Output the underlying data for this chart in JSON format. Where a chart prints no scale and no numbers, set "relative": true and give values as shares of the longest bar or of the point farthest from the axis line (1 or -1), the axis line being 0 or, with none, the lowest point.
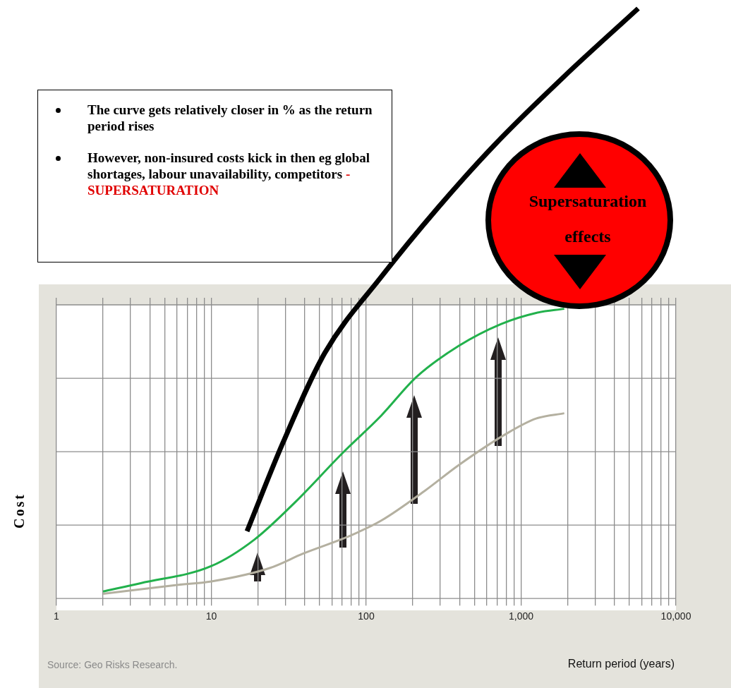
{
  "chart_data": {
    "type": "line",
    "relative": true,
    "log": "x",
    "grid": true,
    "legend": false,
    "marker": "none",
    "xlabel": "Return period (years)",
    "ylabel": "Cost",
    "xlim": [
      1,
      10000
    ],
    "xticks": [
      1,
      {
        "value": 2,
        "label": null
      },
      {
        "value": 3,
        "label": null
      },
      {
        "value": 4,
        "label": null
      },
      {
        "value": 5,
        "label": null
      },
      {
        "value": 6,
        "label": null
      },
      {
        "value": 7,
        "label": null
      },
      {
        "value": 8,
        "label": null
      },
      {
        "value": 9,
        "label": null
      },
      {
        "value": 10,
        "label": "10"
      },
      {
        "value": 20,
        "label": null
      },
      {
        "value": 30,
        "label": null
      },
      {
        "value": 40,
        "label": null
      },
      {
        "value": 50,
        "label": null
      },
      {
        "value": 60,
        "label": null
      },
      {
        "value": 70,
        "label": null
      },
      {
        "value": 80,
        "label": null
      },
      {
        "value": 90,
        "label": null
      },
      {
        "value": 100,
        "label": "100"
      },
      {
        "value": 200,
        "label": null
      },
      {
        "value": 300,
        "label": null
      },
      {
        "value": 400,
        "label": null
      },
      {
        "value": 500,
        "label": null
      },
      {
        "value": 600,
        "label": null
      },
      {
        "value": 700,
        "label": null
      },
      {
        "value": 800,
        "label": null
      },
      {
        "value": 900,
        "label": null
      },
      {
        "value": 1000,
        "label": "1,000"
      },
      {
        "value": 2000,
        "label": null
      },
      {
        "value": 3000,
        "label": null
      },
      {
        "value": 4000,
        "label": null
      },
      {
        "value": 5000,
        "label": null
      },
      {
        "value": 6000,
        "label": null
      },
      {
        "value": 7000,
        "label": null
      },
      {
        "value": 8000,
        "label": null
      },
      {
        "value": 9000,
        "label": null
      },
      {
        "value": 10000,
        "label": "10,000"
      }
    ],
    "series": [
      {
        "color": "#22b14c",
        "x": [
          2,
          3.5,
          10,
          19,
          35,
          70,
          125,
          210,
          395,
          740,
          1250,
          1900
        ],
        "values": [
          0.012,
          0.026,
          0.055,
          0.1,
          0.164,
          0.246,
          0.31,
          0.375,
          0.428,
          0.465,
          0.484,
          0.491
        ]
      },
      {
        "color": "#b4b0a0",
        "x": [
          2,
          6,
          10,
          24,
          39,
          78,
          125,
          240,
          395,
          800,
          1250,
          1900
        ],
        "values": [
          0.008,
          0.023,
          0.029,
          0.052,
          0.076,
          0.106,
          0.132,
          0.183,
          0.226,
          0.279,
          0.305,
          0.314
        ]
      },
      {
        "color": "#000000",
        "x": [
          17,
          29,
          54,
          125,
          290,
          670,
          1900,
          5700
        ],
        "values": [
          0.114,
          0.264,
          0.416,
          0.545,
          0.662,
          0.768,
          0.885,
          1.0
        ]
      }
    ],
    "annotations": [
      "The curve gets relatively closer in % as the return period rises",
      "However, non-insured costs  kick in then  eg global shortages, labour unavailability, competitors",
      "- SUPERSATURATION",
      "Supersaturation effects",
      "Source: Geo Risks Research."
    ]
  }
}
